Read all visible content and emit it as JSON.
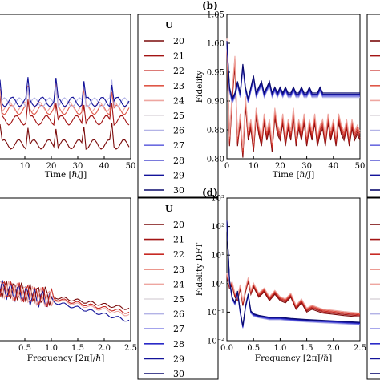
{
  "legend": {
    "title": "U",
    "entries": [
      {
        "label": "20",
        "color": "#7a0a0a"
      },
      {
        "label": "21",
        "color": "#a31414"
      },
      {
        "label": "22",
        "color": "#c72a24"
      },
      {
        "label": "23",
        "color": "#df5748"
      },
      {
        "label": "24",
        "color": "#eea6a0"
      },
      {
        "label": "25",
        "color": "#ded8de"
      },
      {
        "label": "26",
        "color": "#b3b3e6"
      },
      {
        "label": "27",
        "color": "#6c6ce0"
      },
      {
        "label": "28",
        "color": "#2a2ac8"
      },
      {
        "label": "29",
        "color": "#13139a"
      },
      {
        "label": "30",
        "color": "#0b0b6e"
      }
    ]
  },
  "chart_data": [
    {
      "panel": "a",
      "type": "line",
      "xlabel": "Time [ℏ/J]",
      "ylabel": "",
      "xlim": [
        0,
        50
      ],
      "xticks": [
        "10",
        "20",
        "30",
        "40",
        "50"
      ],
      "yticks": [],
      "grid": false,
      "note": "left panel cut off at image edge; y-axis not visible"
    },
    {
      "panel": "b",
      "panel_label": "(b)",
      "type": "line",
      "xlabel": "Time [ℏ/J]",
      "ylabel": "Fidelity",
      "xlim": [
        0,
        50
      ],
      "ylim": [
        0.8,
        1.05
      ],
      "xticks": [
        "0",
        "10",
        "20",
        "30",
        "40",
        "50"
      ],
      "yticks": [
        "0.80",
        "0.85",
        "0.90",
        "0.95",
        "1.00",
        "1.05"
      ],
      "grid": false,
      "series_low_U": {
        "x": [
          0,
          1,
          2,
          3,
          4,
          5,
          6,
          7,
          8,
          9,
          10,
          11,
          12,
          13,
          14,
          15,
          16,
          17,
          18,
          19,
          20,
          21,
          22,
          23,
          24,
          25,
          26,
          27,
          28,
          29,
          30,
          31,
          32,
          33,
          34,
          35,
          36,
          37,
          38,
          39,
          40,
          41,
          42,
          43,
          44,
          45,
          46,
          47,
          48,
          49,
          50
        ],
        "y": [
          1.0,
          0.83,
          0.91,
          0.97,
          0.83,
          0.87,
          0.81,
          0.9,
          0.84,
          0.86,
          0.82,
          0.88,
          0.85,
          0.83,
          0.87,
          0.84,
          0.86,
          0.82,
          0.88,
          0.85,
          0.84,
          0.87,
          0.83,
          0.86,
          0.84,
          0.88,
          0.83,
          0.86,
          0.84,
          0.87,
          0.83,
          0.86,
          0.84,
          0.87,
          0.83,
          0.85,
          0.86,
          0.83,
          0.87,
          0.84,
          0.86,
          0.83,
          0.87,
          0.85,
          0.84,
          0.86,
          0.83,
          0.86,
          0.84,
          0.85,
          0.84
        ]
      },
      "series_high_U": {
        "x": [
          0,
          1,
          2,
          3,
          4,
          5,
          6,
          7,
          8,
          9,
          10,
          11,
          12,
          13,
          14,
          15,
          16,
          17,
          18,
          19,
          20,
          21,
          22,
          23,
          24,
          25,
          26,
          27,
          28,
          29,
          30,
          31,
          32,
          33,
          34,
          35,
          36,
          37,
          38,
          39,
          40,
          41,
          42,
          43,
          44,
          45,
          46,
          47,
          48,
          49,
          50
        ],
        "y": [
          1.0,
          0.92,
          0.9,
          0.91,
          0.93,
          0.91,
          0.96,
          0.92,
          0.9,
          0.92,
          0.94,
          0.91,
          0.92,
          0.93,
          0.91,
          0.92,
          0.93,
          0.91,
          0.92,
          0.91,
          0.92,
          0.91,
          0.92,
          0.91,
          0.91,
          0.92,
          0.91,
          0.91,
          0.92,
          0.91,
          0.91,
          0.92,
          0.91,
          0.91,
          0.91,
          0.92,
          0.91,
          0.91,
          0.91,
          0.91,
          0.91,
          0.91,
          0.91,
          0.91,
          0.91,
          0.91,
          0.91,
          0.91,
          0.91,
          0.91,
          0.91
        ]
      }
    },
    {
      "panel": "c",
      "type": "line",
      "xlabel": "Frequency [2πJ/ℏ]",
      "ylabel": "",
      "xlim": [
        0,
        2.5
      ],
      "xticks": [
        "0.5",
        "1.0",
        "1.5",
        "2.0",
        "2.5"
      ],
      "yticks": [],
      "grid": false
    },
    {
      "panel": "d",
      "panel_label": "(d)",
      "type": "line",
      "xlabel": "Frequency [2πJ/ℏ]",
      "ylabel": "Fidelity DFT",
      "xlim": [
        0,
        2.5
      ],
      "yscale": "log",
      "ylim": [
        0.01,
        1000
      ],
      "xticks": [
        "0.0",
        "0.5",
        "1.0",
        "1.5",
        "2.0",
        "2.5"
      ],
      "yticks": [
        "10⁻²",
        "10⁻¹",
        "10⁰",
        "10¹",
        "10²",
        "10³"
      ],
      "grid": false,
      "series_low_U": {
        "x": [
          0.0,
          0.05,
          0.1,
          0.15,
          0.2,
          0.25,
          0.3,
          0.35,
          0.4,
          0.45,
          0.5,
          0.6,
          0.7,
          0.8,
          0.9,
          1.0,
          1.1,
          1.2,
          1.3,
          1.4,
          1.5,
          1.6,
          1.8,
          2.0,
          2.2,
          2.5
        ],
        "y": [
          2.0,
          0.8,
          1.0,
          0.4,
          0.3,
          0.8,
          0.2,
          0.6,
          1.4,
          0.5,
          0.9,
          0.4,
          0.6,
          0.3,
          0.5,
          0.3,
          0.25,
          0.4,
          0.15,
          0.25,
          0.12,
          0.15,
          0.11,
          0.1,
          0.09,
          0.08
        ]
      },
      "series_high_U": {
        "x": [
          0.0,
          0.02,
          0.05,
          0.1,
          0.15,
          0.2,
          0.25,
          0.3,
          0.35,
          0.4,
          0.45,
          0.5,
          0.6,
          0.8,
          1.0,
          1.2,
          1.5,
          2.0,
          2.5
        ],
        "y": [
          150,
          20,
          1.2,
          0.3,
          0.2,
          0.5,
          0.1,
          0.03,
          0.15,
          0.4,
          0.1,
          0.08,
          0.07,
          0.06,
          0.06,
          0.055,
          0.05,
          0.045,
          0.04
        ]
      }
    }
  ]
}
